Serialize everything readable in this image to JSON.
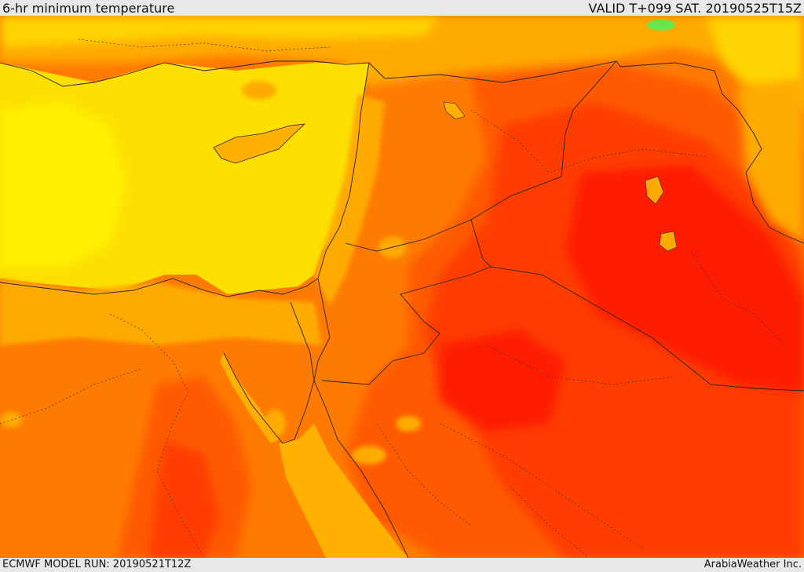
{
  "header": {
    "title": "6-hr minimum temperature",
    "valid": "VALID T+099 SAT. 20190525T15Z"
  },
  "footer": {
    "model_run": "ECMWF MODEL RUN: 20190521T12Z",
    "credit": "ArabiaWeather Inc."
  },
  "map": {
    "colors": {
      "sea": "#fde000",
      "land_cool": "#ffd400",
      "land_mild": "#ffaa00",
      "land_warm": "#ff7a00",
      "land_hot": "#ff5a00",
      "land_very_hot": "#ff3c00",
      "land_extreme": "#ff1e00",
      "cold_spot": "#66e64d",
      "red_sea": "#ffb000",
      "border": "#222222"
    }
  }
}
